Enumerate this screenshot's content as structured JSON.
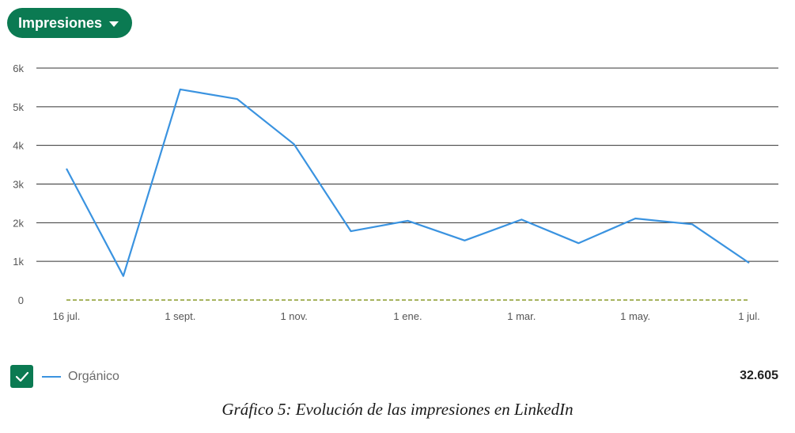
{
  "metric_selector": {
    "label": "Impresiones",
    "icon": "caret-down-icon"
  },
  "colors": {
    "accent": "#0b7a52",
    "series": "#3a93e0",
    "baseline": "#8a9a2a",
    "grid": "#333333"
  },
  "legend": {
    "checkbox_checked": true,
    "series_label": "Orgánico",
    "total": "32.605"
  },
  "caption": "Gráfico 5: Evolución de las impresiones en LinkedIn",
  "chart_data": {
    "type": "line",
    "title": "",
    "xlabel": "",
    "ylabel": "",
    "ylim": [
      0,
      6000
    ],
    "y_ticks": [
      0,
      1000,
      2000,
      3000,
      4000,
      5000,
      6000
    ],
    "y_tick_labels": [
      "0",
      "1k",
      "2k",
      "3k",
      "4k",
      "5k",
      "6k"
    ],
    "x_tick_labels": [
      "16 jul.",
      "1 sept.",
      "1 nov.",
      "1 ene.",
      "1 mar.",
      "1 may.",
      "1 jul."
    ],
    "grid": true,
    "series": [
      {
        "name": "Orgánico",
        "values": [
          3400,
          620,
          5450,
          5200,
          4030,
          1780,
          2050,
          1540,
          2080,
          1470,
          2110,
          1960,
          960
        ]
      },
      {
        "name": "",
        "values": [
          0,
          0,
          0,
          0,
          0,
          0,
          0,
          0,
          0,
          0,
          0,
          0,
          0
        ],
        "style": "dashed"
      }
    ]
  }
}
